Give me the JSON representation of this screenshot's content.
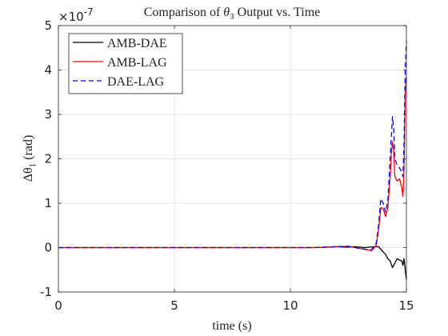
{
  "chart_data": {
    "type": "line",
    "title": "Comparison of θ3 Output vs. Time",
    "title_parts": {
      "prefix": "Comparison of ",
      "symbol": "θ",
      "subscript": "3",
      "suffix": " Output vs. Time"
    },
    "xlabel": "time (s)",
    "ylabel": "Δθ1 (rad)",
    "ylabel_parts": {
      "symbol": "Δθ",
      "subscript": "1",
      "suffix": " (rad)"
    },
    "xlim": [
      0,
      15
    ],
    "ylim": [
      -1,
      5
    ],
    "x_ticks": [
      0,
      5,
      10,
      15
    ],
    "x_tick_labels": [
      "0",
      "5",
      "10",
      "15"
    ],
    "y_ticks": [
      -1,
      0,
      1,
      2,
      3,
      4,
      5
    ],
    "y_tick_labels": [
      "-1",
      "0",
      "1",
      "2",
      "3",
      "4",
      "5"
    ],
    "y_exponent": {
      "base": "×10",
      "power": "-7"
    },
    "grid": true,
    "legend_position": "top-left",
    "series": [
      {
        "name": "AMB-DAE",
        "color": "#000000",
        "dash": "solid",
        "x": [
          0,
          11.0,
          11.5,
          12.0,
          12.4,
          12.8,
          13.2,
          13.6,
          13.8,
          14.0,
          14.1,
          14.2,
          14.3,
          14.4,
          14.5,
          14.6,
          14.7,
          14.8,
          14.85,
          14.9,
          14.95,
          15.0
        ],
        "y": [
          0,
          0,
          0.01,
          0.02,
          0.01,
          0.02,
          0.0,
          0.02,
          0.02,
          -0.1,
          -0.15,
          -0.25,
          -0.3,
          -0.45,
          -0.35,
          -0.25,
          -0.28,
          -0.3,
          -0.4,
          -0.25,
          -0.5,
          -0.72
        ]
      },
      {
        "name": "AMB-LAG",
        "color": "#ff0000",
        "dash": "solid",
        "x": [
          0,
          11.0,
          12.0,
          12.5,
          13.0,
          13.3,
          13.5,
          13.7,
          13.8,
          13.9,
          14.0,
          14.1,
          14.2,
          14.3,
          14.35,
          14.4,
          14.45,
          14.5,
          14.6,
          14.7,
          14.8,
          14.85,
          14.9,
          14.95,
          15.0
        ],
        "y": [
          0,
          0,
          0.02,
          0.03,
          -0.02,
          -0.05,
          -0.07,
          0.05,
          0.4,
          0.9,
          0.88,
          0.7,
          0.9,
          1.6,
          2.1,
          2.38,
          2.2,
          1.6,
          1.5,
          1.55,
          1.35,
          1.15,
          1.8,
          3.5,
          3.85
        ]
      },
      {
        "name": "DAE-LAG",
        "color": "#0000ff",
        "dash": "dashed",
        "x": [
          0,
          11.0,
          12.0,
          12.5,
          13.0,
          13.3,
          13.5,
          13.7,
          13.8,
          13.9,
          14.0,
          14.1,
          14.2,
          14.3,
          14.35,
          14.4,
          14.45,
          14.5,
          14.6,
          14.7,
          14.8,
          14.85,
          14.9,
          14.95,
          15.0
        ],
        "y": [
          0,
          0,
          0.02,
          0.03,
          -0.02,
          -0.04,
          -0.05,
          0.1,
          0.5,
          1.1,
          1.0,
          0.8,
          1.05,
          2.0,
          2.5,
          2.95,
          2.7,
          2.0,
          1.85,
          1.8,
          1.7,
          1.6,
          2.4,
          4.0,
          4.65
        ]
      }
    ]
  }
}
